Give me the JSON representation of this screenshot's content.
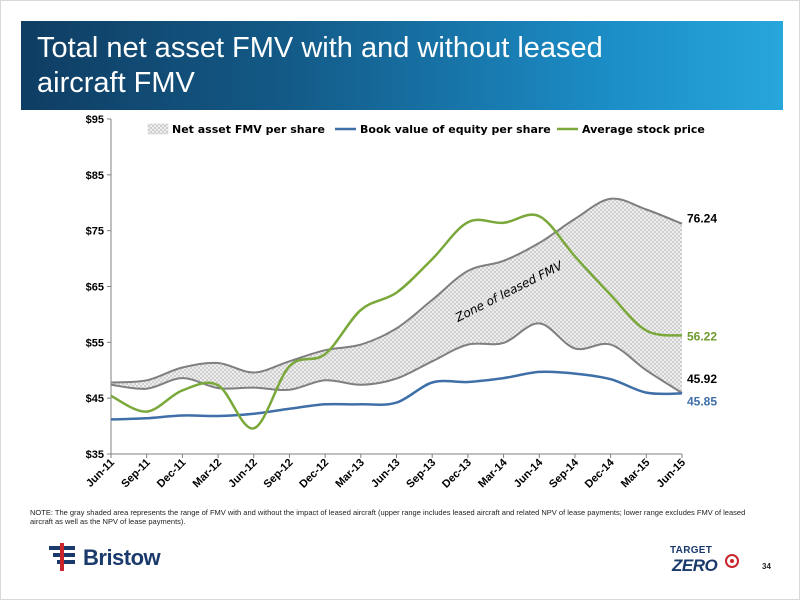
{
  "slide": {
    "title": "Total net asset FMV with and without leased aircraft FMV",
    "note": "NOTE: The gray shaded area represents the range of FMV with and without the impact of leased aircraft (upper range includes leased aircraft and related NPV of lease payments; lower range excludes FMV of leased aircraft as well as the NPV of lease payments).",
    "logo_text": "Bristow",
    "target_zero_top": "TARGET",
    "target_zero_bottom": "ZERO",
    "page_number": "34"
  },
  "colors": {
    "band_outline": "#7f7f7f",
    "book_value": "#3e6fa8",
    "stock_price": "#7aa83a",
    "stock_label": "#6f9a2f",
    "book_label": "#3e6fa8"
  },
  "chart_data": {
    "type": "line",
    "title": "",
    "x": [
      "Jun-11",
      "Sep-11",
      "Dec-11",
      "Mar-12",
      "Jun-12",
      "Sep-12",
      "Dec-12",
      "Mar-13",
      "Jun-13",
      "Sep-13",
      "Dec-13",
      "Mar-14",
      "Jun-14",
      "Sep-14",
      "Dec-14",
      "Mar-15",
      "Jun-15"
    ],
    "ylim": [
      35,
      95
    ],
    "yticks": [
      35,
      45,
      55,
      65,
      75,
      85,
      95
    ],
    "ytick_labels": [
      "$35",
      "$45",
      "$55",
      "$65",
      "$75",
      "$85",
      "$95"
    ],
    "grid": false,
    "legend_position": "top",
    "band": {
      "name": "Net asset FMV per share",
      "upper": [
        47.8,
        48.2,
        50.5,
        51.3,
        49.6,
        51.6,
        53.6,
        54.6,
        57.5,
        62.6,
        67.8,
        69.6,
        72.8,
        77.1,
        80.7,
        78.8,
        76.24
      ],
      "lower": [
        47.4,
        46.7,
        48.6,
        46.8,
        46.9,
        46.5,
        48.2,
        47.4,
        48.5,
        51.6,
        54.6,
        54.9,
        58.4,
        53.9,
        54.6,
        50.0,
        45.92
      ],
      "annotation": "Zone of leased FMV"
    },
    "series": [
      {
        "name": "Book value of equity per share",
        "values": [
          41.2,
          41.4,
          41.9,
          41.8,
          42.2,
          43.1,
          43.9,
          43.9,
          44.2,
          47.8,
          47.9,
          48.6,
          49.7,
          49.4,
          48.4,
          46.0,
          45.85
        ]
      },
      {
        "name": "Average stock price",
        "values": [
          45.4,
          42.6,
          46.4,
          47.3,
          39.6,
          50.7,
          52.9,
          60.8,
          63.9,
          69.9,
          76.5,
          76.4,
          77.6,
          70.4,
          63.5,
          57.1,
          56.22
        ]
      }
    ],
    "end_labels": {
      "band_upper": "76.24",
      "stock_price": "56.22",
      "band_lower": "45.92",
      "book_value": "45.85"
    }
  }
}
